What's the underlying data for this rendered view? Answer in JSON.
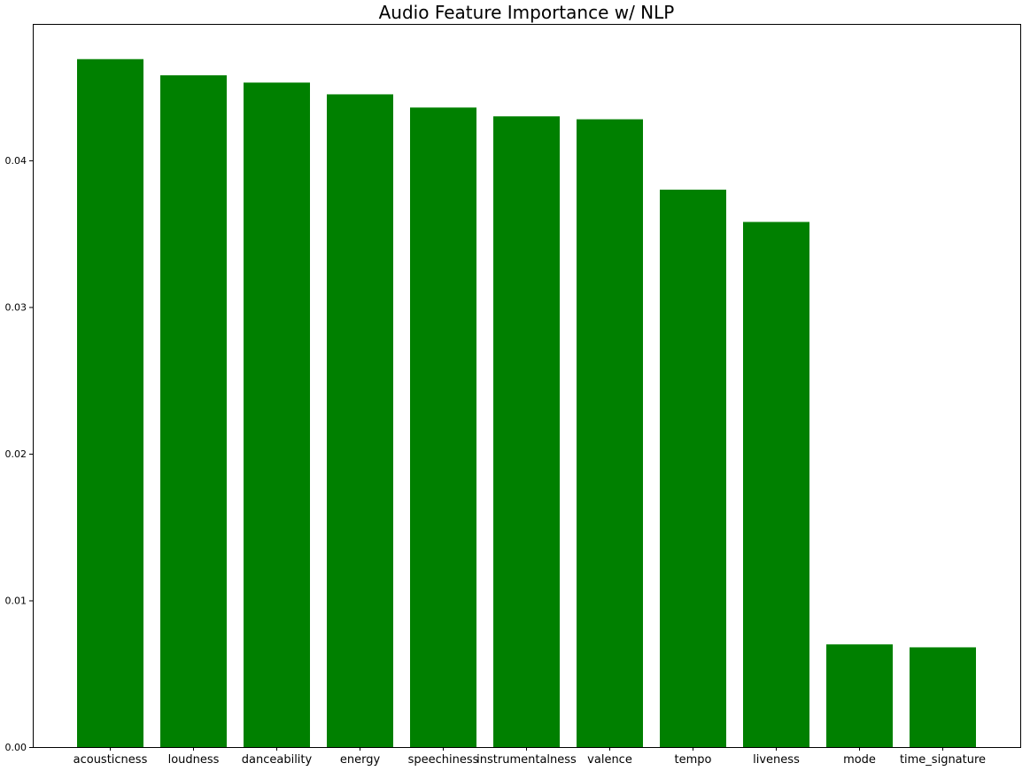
{
  "chart_data": {
    "type": "bar",
    "title": "Audio Feature Importance w/ NLP",
    "xlabel": "",
    "ylabel": "",
    "categories": [
      "acousticness",
      "loudness",
      "danceability",
      "energy",
      "speechiness",
      "instrumentalness",
      "valence",
      "tempo",
      "liveness",
      "mode",
      "time_signature"
    ],
    "values": [
      0.0469,
      0.0458,
      0.0453,
      0.0445,
      0.0436,
      0.043,
      0.0428,
      0.038,
      0.0358,
      0.007,
      0.0068
    ],
    "ylim": [
      0,
      0.0493
    ],
    "yticks": [
      0.0,
      0.01,
      0.02,
      0.03,
      0.04
    ],
    "ytick_labels": [
      "0.00",
      "0.01",
      "0.02",
      "0.03",
      "0.04"
    ],
    "bar_color": "#008000",
    "grid": false,
    "legend": "none"
  }
}
